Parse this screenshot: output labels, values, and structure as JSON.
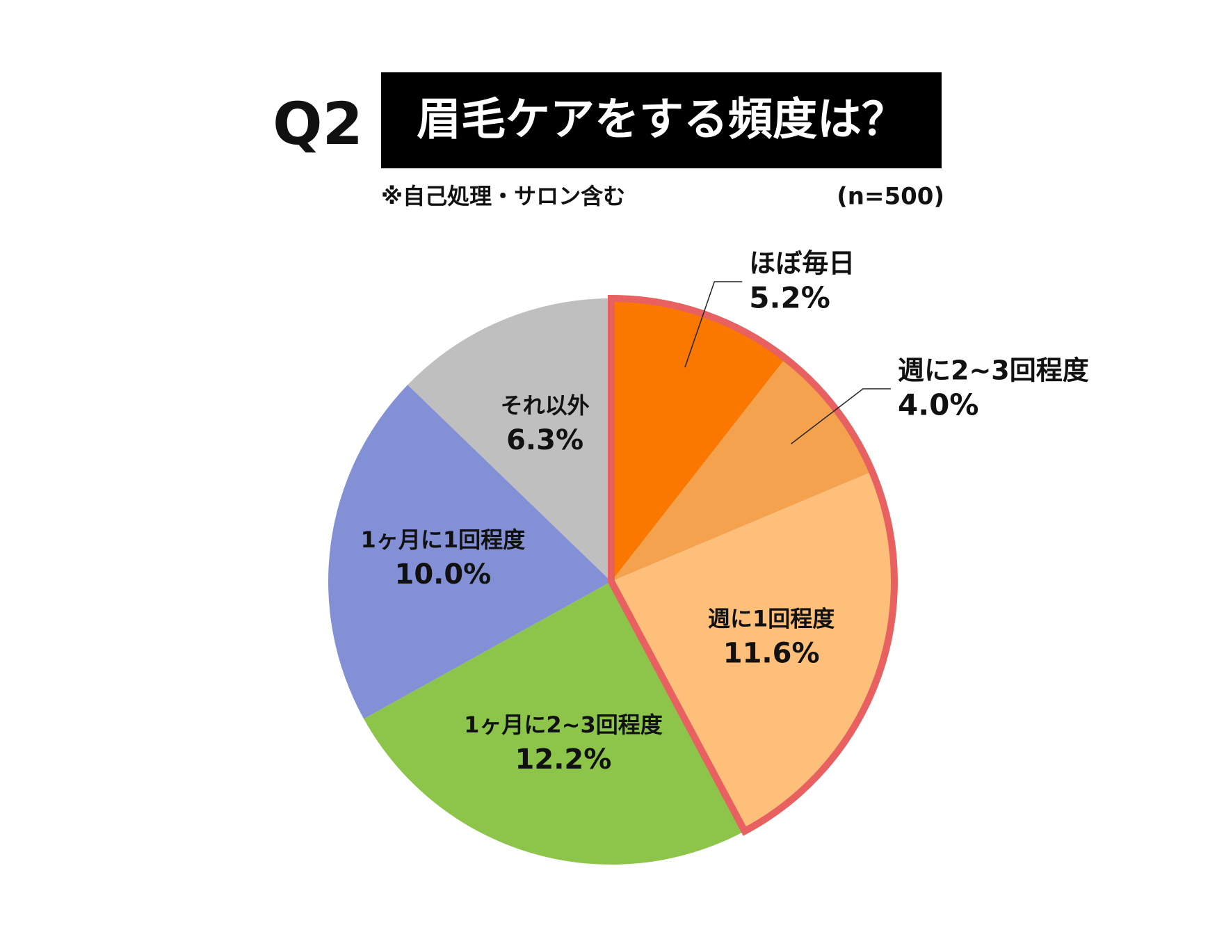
{
  "chart_data": {
    "type": "pie",
    "title_prefix": "Q2",
    "title": "眉毛ケアをする頻度は？",
    "subtitle": "※自己処理・サロン含む",
    "note": "(n=500)",
    "categories": [
      "ほぼ毎日",
      "週に2~3回程度",
      "週に1回程度",
      "1ヶ月に2~3回程度",
      "1ヶ月に1回程度",
      "それ以外"
    ],
    "values": [
      5.2,
      4.0,
      11.6,
      12.2,
      10.0,
      6.3
    ],
    "value_labels": [
      "5.2%",
      "4.0%",
      "11.6%",
      "12.2%",
      "10.0%",
      "6.3%"
    ],
    "colors": [
      "#fa7800",
      "#f5a24e",
      "#fdbf7a",
      "#8dc54a",
      "#8390d6",
      "#bfbfbf"
    ],
    "highlight": {
      "indices": [
        0,
        1,
        2
      ],
      "color": "#e86060"
    }
  }
}
